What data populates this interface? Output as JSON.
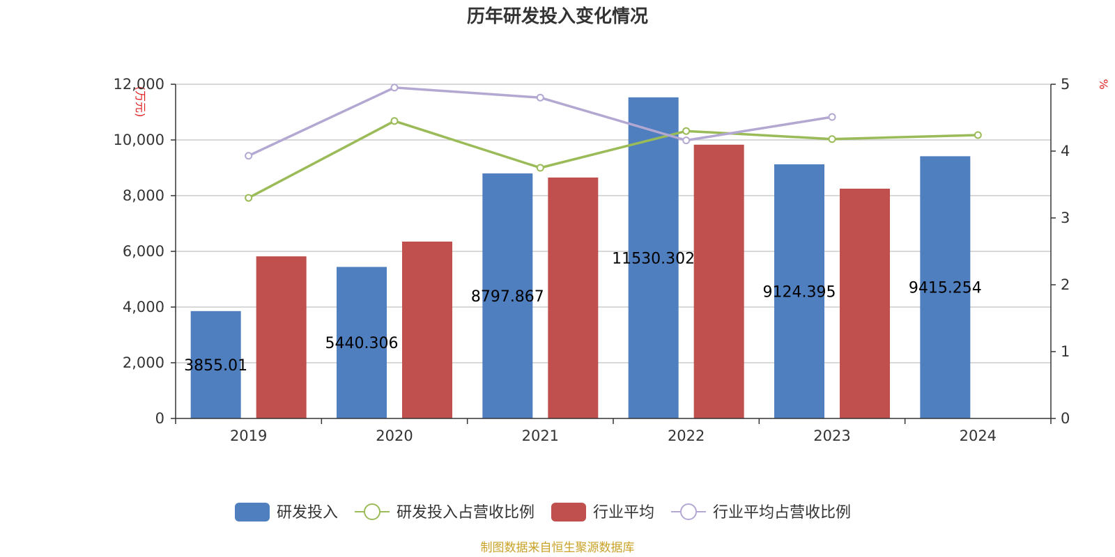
{
  "chart_data": {
    "type": "bar",
    "title": "历年研发投入变化情况",
    "categories": [
      "2019",
      "2020",
      "2021",
      "2022",
      "2023",
      "2024"
    ],
    "y_left": {
      "unit_label": "(万元)",
      "range": [
        0,
        12000
      ],
      "ticks": [
        "0",
        "2,000",
        "4,000",
        "6,000",
        "8,000",
        "10,000",
        "12,000"
      ]
    },
    "y_right": {
      "unit_label": "%",
      "range": [
        0,
        5
      ],
      "ticks": [
        "0",
        "1",
        "2",
        "3",
        "4",
        "5"
      ]
    },
    "grid": true,
    "legend_position": "bottom",
    "series": [
      {
        "name": "研发投入",
        "type": "bar",
        "axis": "left",
        "color": "#4f7fbf",
        "values": [
          3855.01,
          5440.306,
          8797.867,
          11530.302,
          9124.395,
          9415.254
        ],
        "labels": [
          "3855.01",
          "5440.306",
          "8797.867",
          "11530.302",
          "9124.395",
          "9415.254"
        ]
      },
      {
        "name": "研发投入占营收比例",
        "type": "line",
        "axis": "right",
        "color": "#9bbb59",
        "values": [
          3.3,
          4.45,
          3.75,
          4.3,
          4.18,
          4.24
        ]
      },
      {
        "name": "行业平均",
        "type": "bar",
        "axis": "left",
        "color": "#c0504d",
        "values": [
          5820,
          6350,
          8650,
          9830,
          8250,
          null
        ]
      },
      {
        "name": "行业平均占营收比例",
        "type": "line",
        "axis": "right",
        "color": "#b3a8d1",
        "values": [
          3.93,
          4.95,
          4.8,
          4.16,
          4.51,
          null
        ]
      }
    ]
  },
  "footer": {
    "source": "制图数据来自恒生聚源数据库"
  }
}
